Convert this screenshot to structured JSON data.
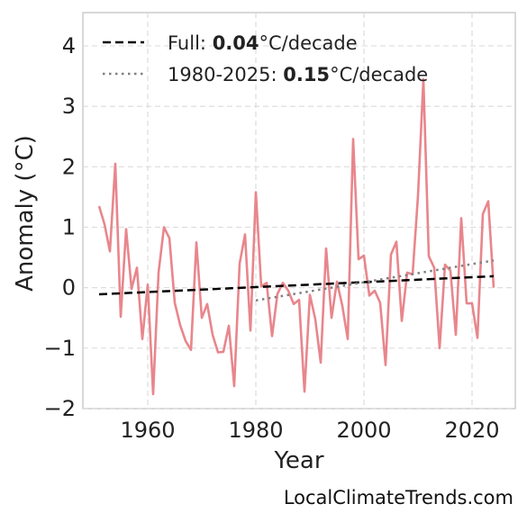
{
  "chart_data": {
    "type": "line",
    "xlabel": "Year",
    "ylabel": "Anomaly (°C)",
    "xlim": [
      1948,
      2028
    ],
    "ylim": [
      -2,
      4.55
    ],
    "xticks": [
      1960,
      1980,
      2000,
      2020
    ],
    "yticks": [
      -2,
      -1,
      0,
      1,
      2,
      3,
      4
    ],
    "ytick_labels": [
      "−2",
      "−1",
      "0",
      "1",
      "2",
      "3",
      "4"
    ],
    "grid": true,
    "legend_position": "top-left",
    "series": [
      {
        "color": "#e8868c",
        "x": [
          1951,
          1952,
          1953,
          1954,
          1955,
          1956,
          1957,
          1958,
          1959,
          1960,
          1961,
          1962,
          1963,
          1964,
          1965,
          1966,
          1967,
          1968,
          1969,
          1970,
          1971,
          1972,
          1973,
          1974,
          1975,
          1976,
          1977,
          1978,
          1979,
          1980,
          1981,
          1982,
          1983,
          1984,
          1985,
          1986,
          1987,
          1988,
          1989,
          1990,
          1991,
          1992,
          1993,
          1994,
          1995,
          1996,
          1997,
          1998,
          1999,
          2000,
          2001,
          2002,
          2003,
          2004,
          2005,
          2006,
          2007,
          2008,
          2009,
          2010,
          2011,
          2012,
          2013,
          2014,
          2015,
          2016,
          2017,
          2018,
          2019,
          2020,
          2021,
          2022,
          2023,
          2024
        ],
        "y": [
          1.35,
          1.05,
          0.6,
          2.05,
          -0.48,
          0.97,
          -0.02,
          0.33,
          -0.85,
          0.05,
          -1.76,
          0.25,
          1.0,
          0.82,
          -0.25,
          -0.62,
          -0.88,
          -1.03,
          0.75,
          -0.5,
          -0.27,
          -0.78,
          -1.07,
          -1.06,
          -0.63,
          -1.63,
          0.4,
          0.88,
          -0.71,
          1.58,
          0.02,
          0.08,
          -0.8,
          -0.1,
          0.08,
          -0.05,
          -0.27,
          -0.2,
          -1.72,
          -0.12,
          -0.52,
          -1.24,
          0.65,
          -0.5,
          0.1,
          -0.3,
          -0.85,
          2.46,
          0.47,
          0.53,
          -0.13,
          -0.05,
          -0.25,
          -1.28,
          0.55,
          0.76,
          -0.55,
          0.25,
          0.22,
          1.52,
          3.45,
          0.52,
          0.33,
          -1.0,
          0.38,
          0.28,
          -0.78,
          1.15,
          -0.26,
          -0.26,
          -0.83,
          1.22,
          1.43,
          0.0
        ]
      },
      {
        "name": "Full",
        "rate": "0.04",
        "unit": "°C/decade",
        "style": "dashed",
        "color": "#000000",
        "x": [
          1951,
          2024
        ],
        "y": [
          -0.11,
          0.19
        ]
      },
      {
        "name": "1980-2025",
        "rate": "0.15",
        "unit": "°C/decade",
        "style": "dotted",
        "color": "#808080",
        "x": [
          1980,
          2024
        ],
        "y": [
          -0.21,
          0.45
        ]
      }
    ],
    "watermark": "LocalClimateTrends.com"
  }
}
